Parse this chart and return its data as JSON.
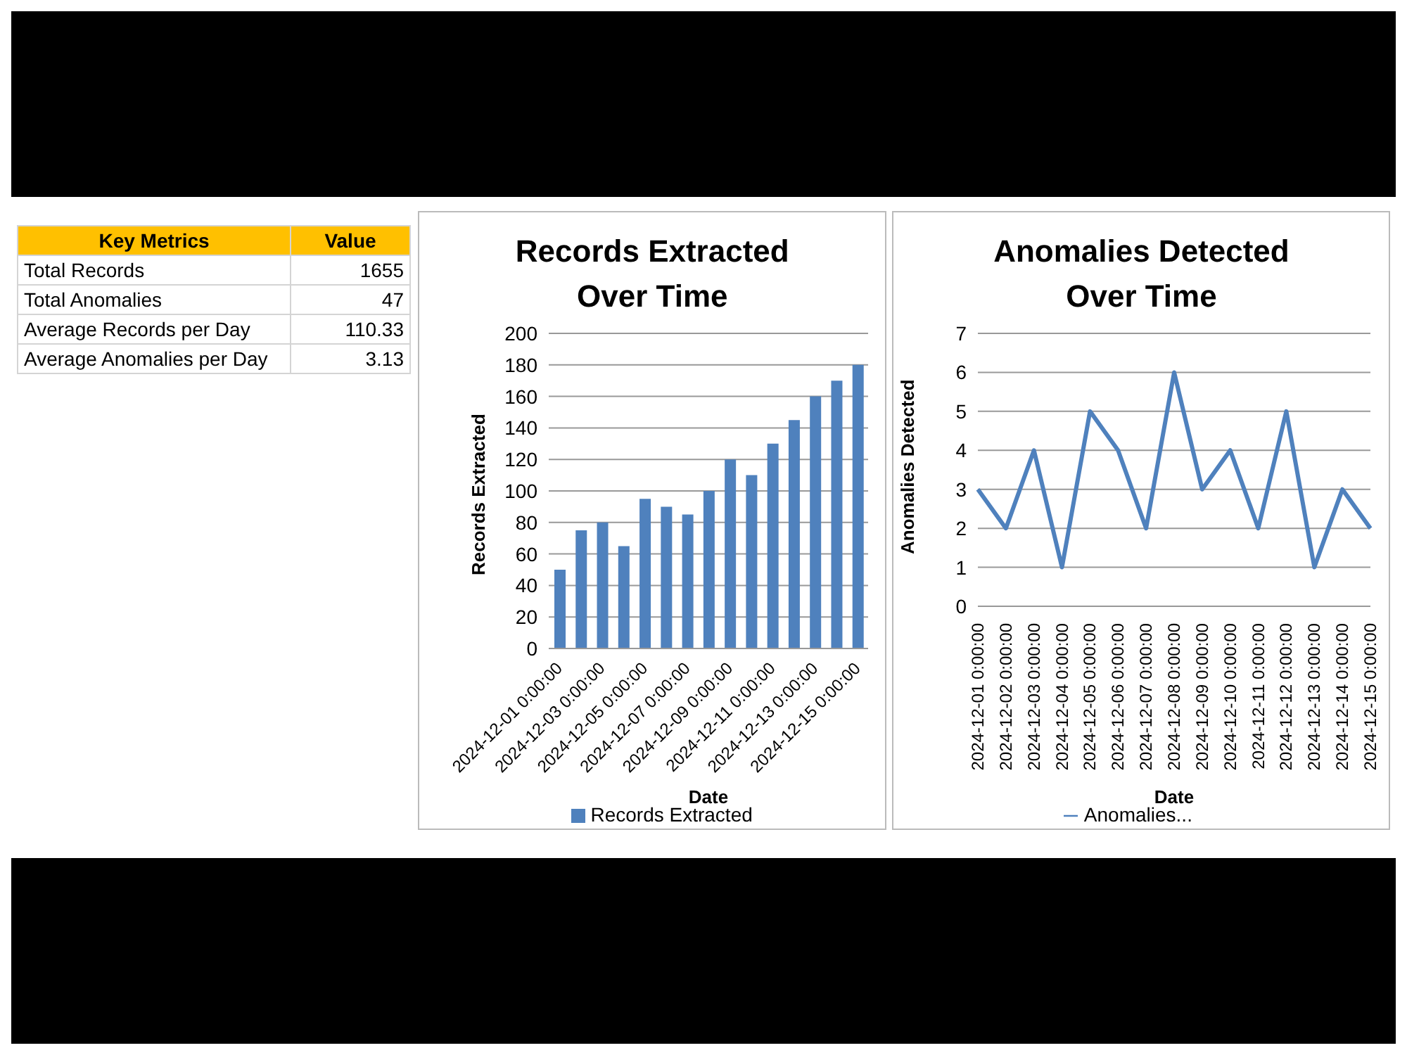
{
  "chart_data": [
    {
      "type": "other",
      "annotations": [
        "Key Metrics",
        "Value",
        "Total Records",
        "1655",
        "Total Anomalies",
        "47",
        "Average Records per Day",
        "110.33",
        "Average Anomalies per Day",
        "3.13"
      ]
    },
    {
      "type": "bar",
      "title": "Records Extracted Over Time",
      "xlabel": "Date",
      "ylabel": "Records Extracted",
      "categories": [
        "2024-12-01 0:00:00",
        null,
        "2024-12-03 0:00:00",
        null,
        "2024-12-05 0:00:00",
        null,
        "2024-12-07 0:00:00",
        null,
        "2024-12-09 0:00:00",
        null,
        "2024-12-11 0:00:00",
        null,
        "2024-12-13 0:00:00",
        null,
        "2024-12-15 0:00:00"
      ],
      "series": [
        {
          "name": "Records Extracted",
          "color": "#4f81bd",
          "values": [
            50,
            75,
            80,
            65,
            95,
            90,
            85,
            100,
            120,
            110,
            130,
            145,
            160,
            170,
            180
          ]
        }
      ],
      "ylim": [
        0,
        200
      ],
      "yticks": [
        0,
        20,
        40,
        60,
        80,
        100,
        120,
        140,
        160,
        180,
        200
      ],
      "grid": "y",
      "legend": "bottom"
    },
    {
      "type": "line",
      "title": "Anomalies Detected Over Time",
      "xlabel": "Date",
      "ylabel": "Anomalies Detected",
      "categories": [
        "2024-12-01 0:00:00",
        "2024-12-02 0:00:00",
        "2024-12-03 0:00:00",
        "2024-12-04 0:00:00",
        "2024-12-05 0:00:00",
        "2024-12-06 0:00:00",
        "2024-12-07 0:00:00",
        "2024-12-08 0:00:00",
        "2024-12-09 0:00:00",
        "2024-12-10 0:00:00",
        "2024-12-11 0:00:00",
        "2024-12-12 0:00:00",
        "2024-12-13 0:00:00",
        "2024-12-14 0:00:00",
        "2024-12-15 0:00:00"
      ],
      "series": [
        {
          "name": "Anomalies...",
          "color": "#4f81bd",
          "values": [
            3,
            2,
            4,
            1,
            5,
            4,
            2,
            6,
            3,
            4,
            2,
            5,
            1,
            3,
            2
          ]
        }
      ],
      "ylim": [
        0,
        7
      ],
      "yticks": [
        0,
        1,
        2,
        3,
        4,
        5,
        6,
        7
      ],
      "grid": "y",
      "legend": "bottom",
      "marker": "none"
    }
  ]
}
